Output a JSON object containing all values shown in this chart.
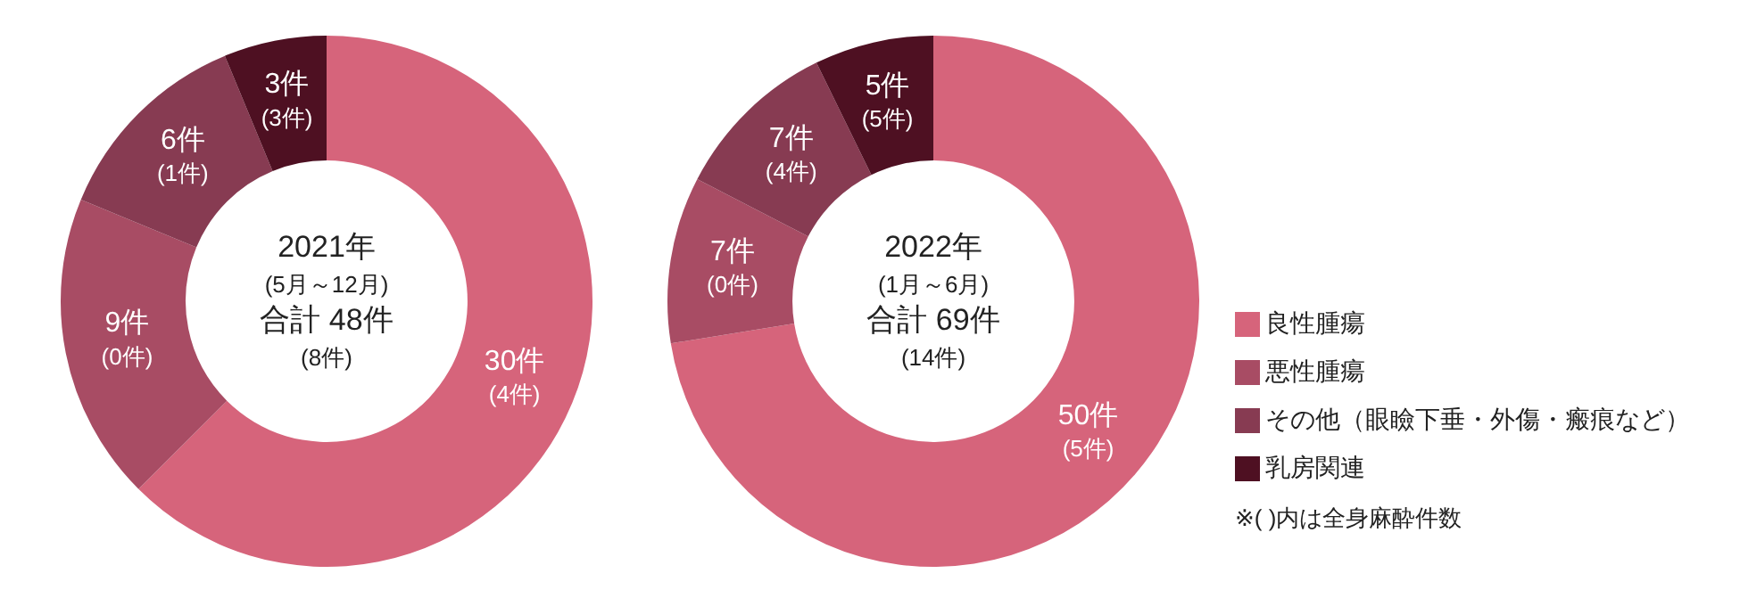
{
  "chart_data": [
    {
      "type": "donut",
      "title": "2021年",
      "subtitle": "(5月～12月)",
      "annotations": [
        "合計 48件",
        "(8件)"
      ],
      "categories": [
        null,
        null,
        null,
        null
      ],
      "values": [
        30,
        9,
        6,
        3
      ],
      "colors": [
        "#d6647b",
        "#a84c64",
        "#873b52",
        "#4e1022"
      ],
      "value_labels": [
        "30件\n(4件)",
        "9件\n(0件)",
        "6件\n(1件)",
        "3件\n(3件)"
      ],
      "legend": false
    },
    {
      "type": "donut",
      "title": "2022年",
      "subtitle": "(1月～6月)",
      "annotations": [
        "合計 69件",
        "(14件)",
        "※( )内は全身麻酔件数"
      ],
      "categories": [
        "良性腫瘍",
        "悪性腫瘍",
        "その他（眼瞼下垂・外傷・瘢痕など）",
        "乳房関連"
      ],
      "values": [
        50,
        7,
        7,
        5
      ],
      "colors": [
        "#d6647b",
        "#a84c64",
        "#873b52",
        "#4e1022"
      ],
      "value_labels": [
        "50件\n(5件)",
        "7件\n(0件)",
        "7件\n(4件)",
        "5件\n(5件)"
      ],
      "legend": "right"
    }
  ]
}
